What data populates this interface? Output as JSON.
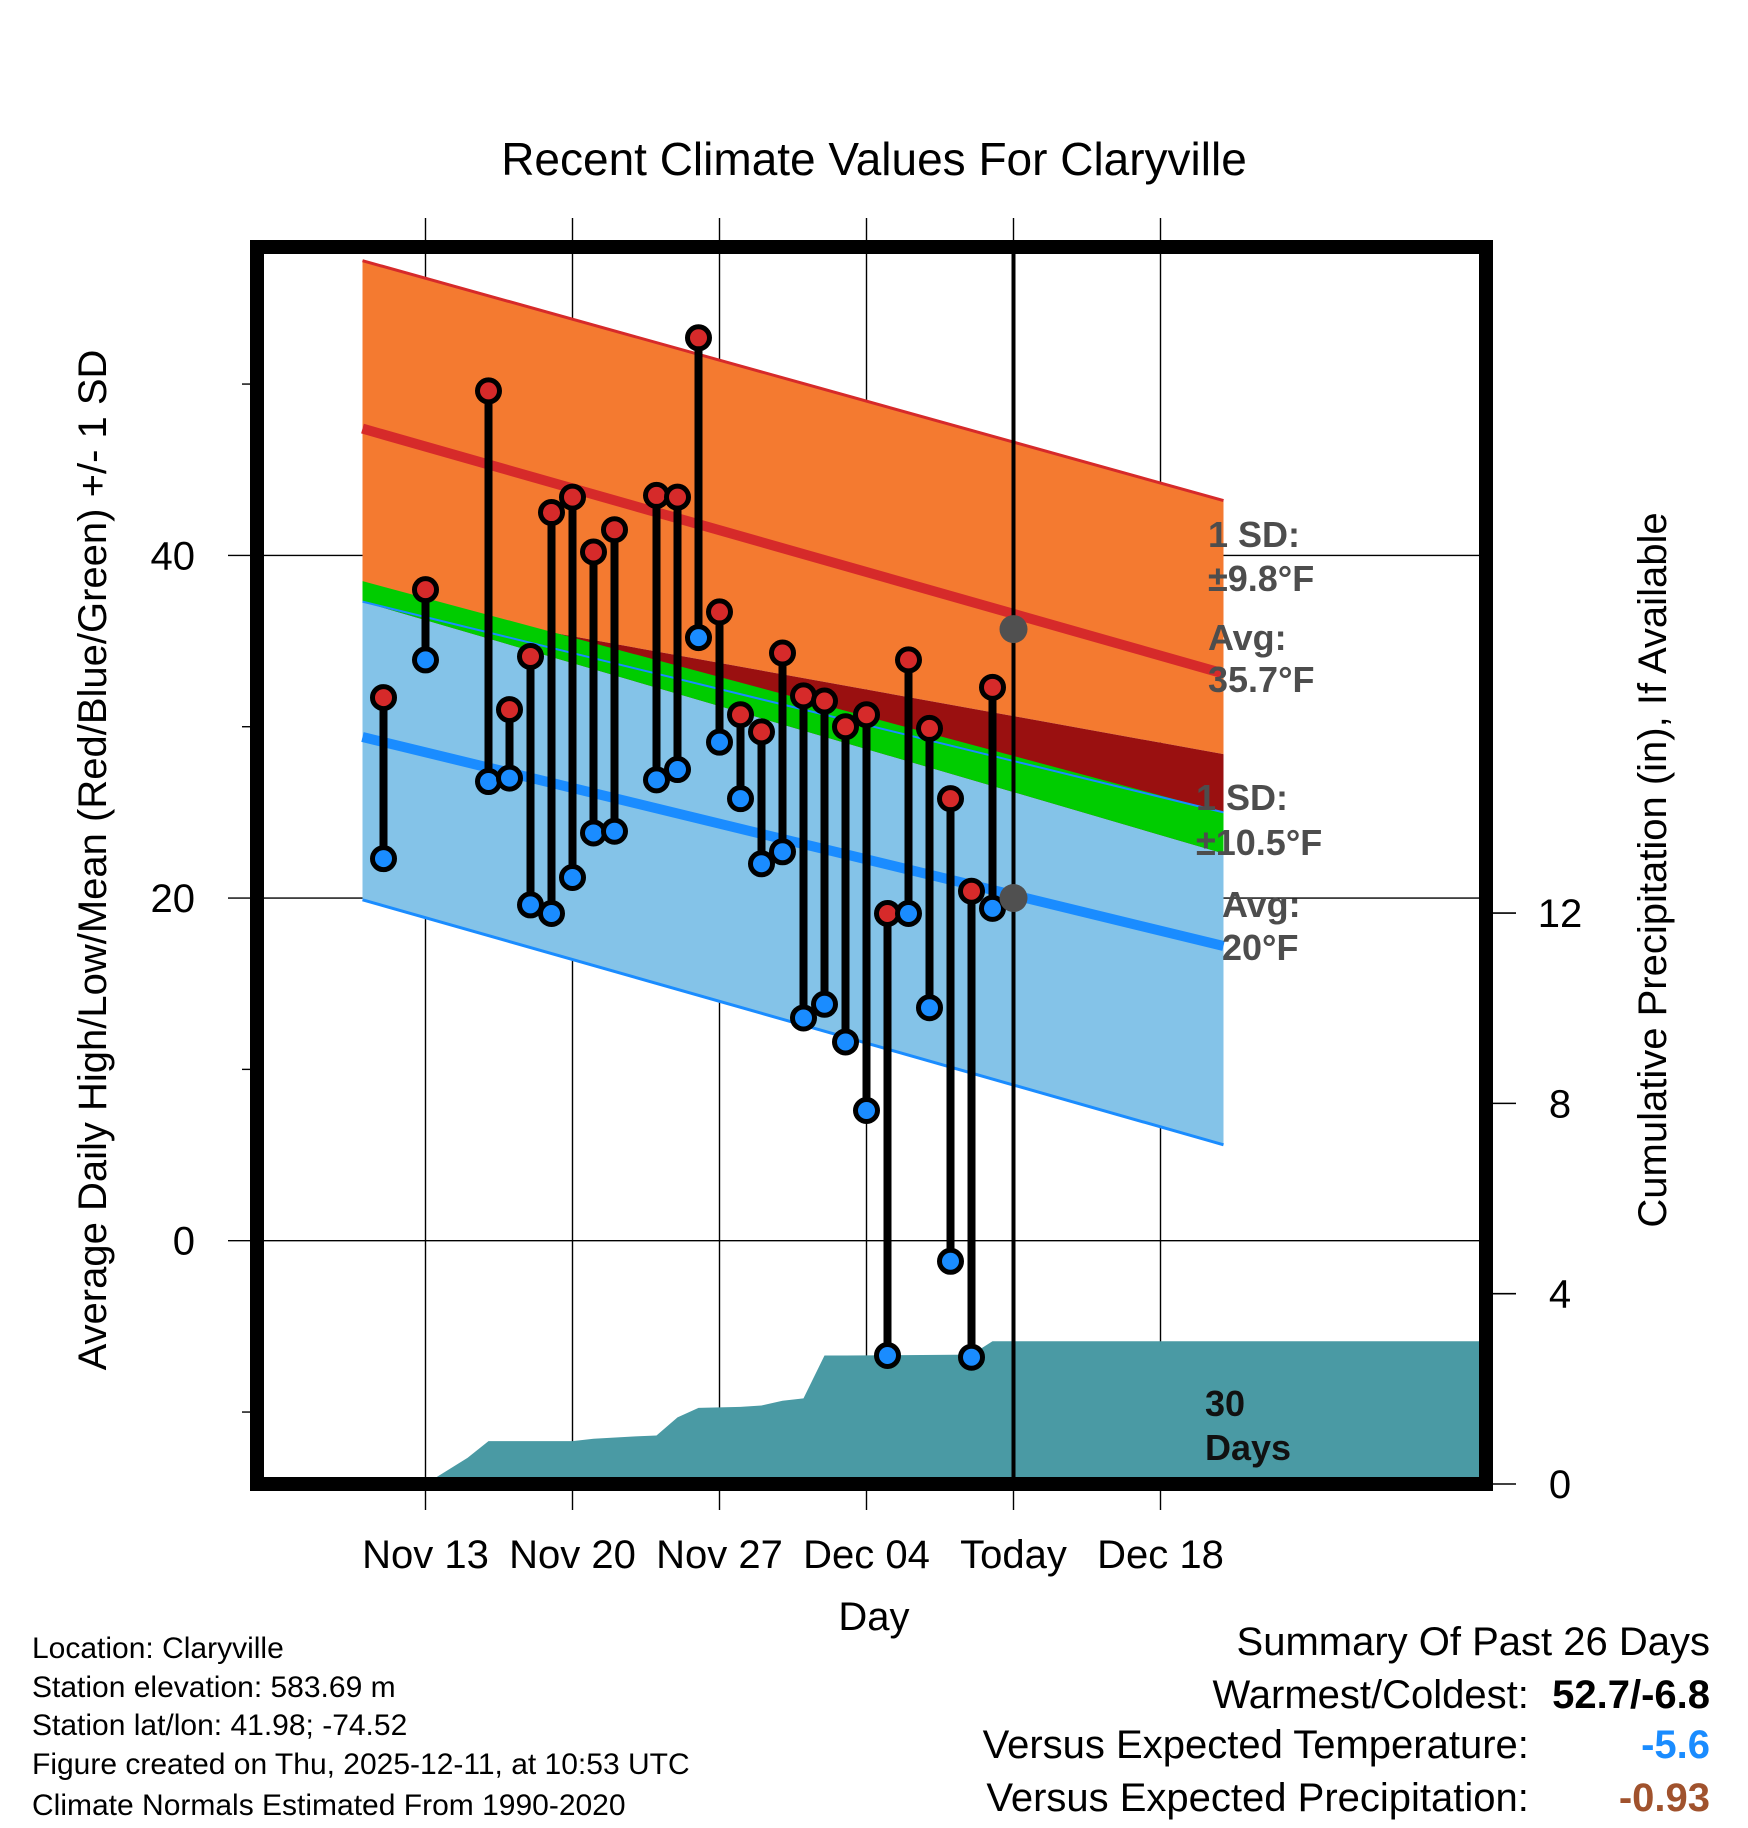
{
  "chart_data": {
    "type": "climate-range",
    "title": "Recent Climate Values For Claryville",
    "xlabel": "Day",
    "ylabel_left": "Average Daily High/Low/Mean (Red/Blue/Green) +/- 1 SD",
    "ylabel_right": "Cumulative Precipitation (in), If Available",
    "x_range": [
      -4.5,
      53.5
    ],
    "ylim": [
      -14.2,
      58
    ],
    "precip_range": [
      0,
      26
    ],
    "x_ticks": [
      {
        "day": 3,
        "label": "Nov 13"
      },
      {
        "day": 10,
        "label": "Nov 20"
      },
      {
        "day": 17,
        "label": "Nov 27"
      },
      {
        "day": 24,
        "label": "Dec 04"
      },
      {
        "day": 31,
        "label": "Today"
      },
      {
        "day": 38,
        "label": "Dec 18"
      }
    ],
    "y_ticks": [
      0,
      20,
      40
    ],
    "y_minor_ticks": [
      -10,
      10,
      30,
      50
    ],
    "precip_ticks": [
      0,
      4,
      8,
      12
    ],
    "today_day": 31,
    "normals": {
      "x": [
        0,
        41
      ],
      "high_mean": [
        47.4,
        33.1
      ],
      "high_upper": [
        57.2,
        43.2
      ],
      "high_lower": [
        37.5,
        28.4
      ],
      "low_mean": [
        29.4,
        17.2
      ],
      "low_upper": [
        37.3,
        25.0
      ],
      "low_lower": [
        19.9,
        5.6
      ],
      "mean_avg": [
        38.5,
        25.0
      ],
      "mean_lower": [
        37.3,
        22.6
      ]
    },
    "daily": {
      "day": [
        1,
        3,
        6,
        7,
        8,
        9,
        10,
        11,
        12,
        14,
        15,
        16,
        17,
        18,
        19,
        20,
        21,
        22,
        23,
        24,
        25,
        26,
        27,
        28,
        29,
        30
      ],
      "high": [
        31.7,
        38.0,
        49.6,
        31.0,
        34.1,
        42.5,
        43.4,
        40.2,
        41.5,
        43.5,
        43.4,
        52.7,
        36.7,
        30.7,
        29.7,
        34.3,
        31.8,
        31.5,
        30.0,
        30.7,
        19.1,
        33.9,
        29.9,
        25.8,
        20.4,
        32.3
      ],
      "low": [
        22.3,
        33.9,
        26.8,
        27.0,
        19.6,
        19.1,
        21.2,
        23.8,
        23.9,
        26.9,
        27.5,
        35.2,
        29.1,
        25.8,
        22.0,
        22.7,
        13.0,
        13.8,
        11.6,
        7.6,
        -6.7,
        19.1,
        13.6,
        -1.2,
        -6.8,
        19.4
      ]
    },
    "precip": {
      "x": [
        -4.5,
        0,
        2,
        3,
        5,
        6,
        10,
        11,
        13,
        14,
        15,
        16,
        18,
        19,
        20,
        21,
        22,
        23,
        29,
        30,
        53.5
      ],
      "cum": [
        0,
        0,
        0,
        0,
        0.55,
        0.9,
        0.9,
        0.95,
        1.0,
        1.02,
        1.4,
        1.6,
        1.62,
        1.65,
        1.75,
        1.8,
        2.7,
        2.7,
        2.72,
        3.0,
        3.0
      ]
    },
    "annotations": {
      "high_sd_label": "1 SD:",
      "high_sd_value": "±9.8°F",
      "high_avg_label": "Avg:",
      "high_avg_value": "35.7°F",
      "low_sd_label": "1 SD:",
      "low_sd_value": "±10.5°F",
      "low_avg_label": "Avg:",
      "low_avg_value": "20°F",
      "high_avg_marker": 35.7,
      "low_avg_marker": 20.0,
      "days_value": "30",
      "days_label": "Days"
    },
    "colors": {
      "high_band": "#f47a30",
      "high_line": "#d62a2a",
      "low_band": "#84c3e8",
      "low_line": "#1a8cff",
      "mean_line": "#00cc00",
      "mean_band": "#9a1010",
      "precip": "#4a9aa4",
      "high_dot": "#d62a2a",
      "low_dot": "#1a8cff",
      "annotation": "#4d4d4d"
    }
  },
  "info": {
    "location": "Location: Claryville",
    "elevation": "Station elevation: 583.69 m",
    "latlon": "Station lat/lon: 41.98; -74.52",
    "created": "Figure created on Thu, 2025-12-11, at 10:53 UTC",
    "normals": "Climate Normals Estimated From 1990-2020"
  },
  "summary": {
    "title": "Summary Of Past 26 Days",
    "warmest_label": "Warmest/Coldest:",
    "warmest_value": "52.7/-6.8",
    "temp_label": "Versus Expected Temperature:",
    "temp_value": "-5.6",
    "temp_color": "#1a8cff",
    "precip_label": "Versus Expected Precipitation:",
    "precip_value": "-0.93",
    "precip_color": "#a0522d"
  }
}
